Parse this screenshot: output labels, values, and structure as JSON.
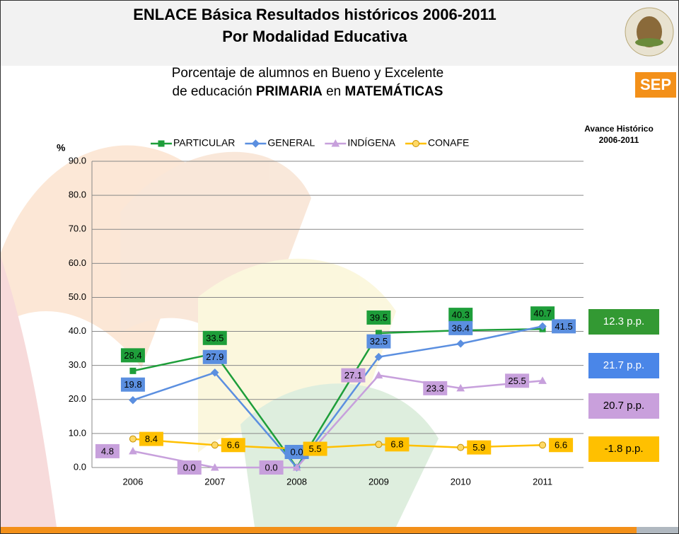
{
  "header": {
    "title_line1": "ENLACE Básica Resultados históricos 2006-2011",
    "title_line2": "Por Modalidad Educativa",
    "logo_text": "SEP"
  },
  "chart_data": {
    "type": "line",
    "subtitle_line1": "Porcentaje de alumnos en Bueno y Excelente",
    "subtitle_line2": [
      {
        "text": "de educación ",
        "bold": false
      },
      {
        "text": "PRIMARIA",
        "bold": true
      },
      {
        "text": " en ",
        "bold": false
      },
      {
        "text": "MATEMÁTICAS",
        "bold": true
      }
    ],
    "y_label": "%",
    "categories": [
      "2006",
      "2007",
      "2008",
      "2009",
      "2010",
      "2011"
    ],
    "ylim": [
      0,
      90
    ],
    "yticks": [
      {
        "value": 0,
        "label": "0.0"
      },
      {
        "value": 10,
        "label": "10.0"
      },
      {
        "value": 20,
        "label": "20.0"
      },
      {
        "value": 30,
        "label": "30.0"
      },
      {
        "value": 40,
        "label": "40.0"
      },
      {
        "value": 50,
        "label": "50.0"
      },
      {
        "value": 60,
        "label": "60.0"
      },
      {
        "value": 70,
        "label": "70.0"
      },
      {
        "value": 80,
        "label": "80.0"
      },
      {
        "value": 90,
        "label": "90.0"
      }
    ],
    "grid": true,
    "series": [
      {
        "name": "PARTICULAR",
        "color": "#1e9e3a",
        "marker": "square",
        "values": [
          28.4,
          33.5,
          0,
          39.5,
          40.3,
          40.7
        ],
        "value_labels": [
          "28.4",
          "33.5",
          null,
          "39.5",
          "40.3",
          "40.7"
        ]
      },
      {
        "name": "GENERAL",
        "color": "#5b8fe0",
        "marker": "diamond",
        "values": [
          19.8,
          27.9,
          0.0,
          32.5,
          36.4,
          41.5
        ],
        "value_labels": [
          "19.8",
          "27.9",
          "0.0",
          "32.5",
          "36.4",
          "41.5"
        ]
      },
      {
        "name": "INDÍGENA",
        "color": "#c7a0dc",
        "marker": "triangle",
        "values": [
          4.8,
          0.0,
          0.0,
          27.1,
          23.3,
          25.5
        ],
        "value_labels": [
          "4.8",
          "0.0",
          "0.0",
          "27.1",
          "23.3",
          "25.5"
        ]
      },
      {
        "name": "CONAFE",
        "color": "#ffc000",
        "marker": "circle",
        "values": [
          8.4,
          6.6,
          5.5,
          6.8,
          5.9,
          6.6
        ],
        "value_labels": [
          "8.4",
          "6.6",
          "5.5",
          "6.8",
          "5.9",
          "6.6"
        ]
      }
    ],
    "avance_title": [
      "Avance Histórico",
      "2006-2011"
    ],
    "avance": [
      {
        "label": "12.3 p.p.",
        "color": "#339933"
      },
      {
        "label": "21.7 p.p.",
        "color": "#4a86e8"
      },
      {
        "label": "20.7 p.p.",
        "color": "#c9a0dc"
      },
      {
        "label": "-1.8 p.p.",
        "color": "#ffc000"
      }
    ]
  }
}
